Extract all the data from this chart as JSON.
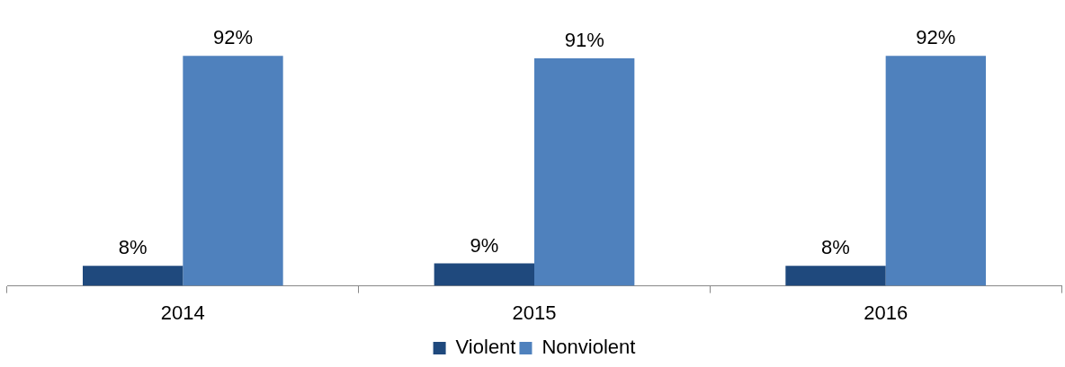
{
  "chart_data": {
    "type": "bar",
    "categories": [
      "2014",
      "2015",
      "2016"
    ],
    "series": [
      {
        "name": "Violent",
        "color": "#1f497d",
        "values": [
          8,
          9,
          8
        ],
        "value_labels": [
          "8%",
          "9%",
          "8%"
        ]
      },
      {
        "name": "Nonviolent",
        "color": "#4f81bd",
        "values": [
          92,
          91,
          92
        ],
        "value_labels": [
          "92%",
          "91%",
          "92%"
        ]
      }
    ],
    "legend": "bottom",
    "tick_labels": "x"
  }
}
